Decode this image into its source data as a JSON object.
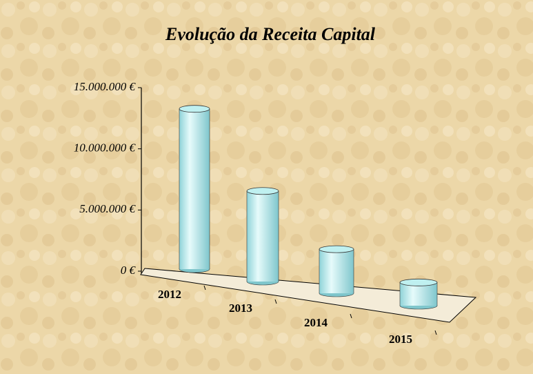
{
  "chart_data": {
    "type": "bar3d",
    "title": "Evolução da Receita Capital",
    "categories": [
      "2012",
      "2013",
      "2014",
      "2015"
    ],
    "values": [
      13100000,
      7400000,
      3600000,
      1900000
    ],
    "color": "#bff0f0",
    "ylim": [
      0,
      15000000
    ],
    "yticks": [
      {
        "value": 0,
        "label": "0 €"
      },
      {
        "value": 5000000,
        "label": "5.000.000 €"
      },
      {
        "value": 10000000,
        "label": "10.000.000 €"
      },
      {
        "value": 15000000,
        "label": "15.000.000 €"
      }
    ]
  }
}
